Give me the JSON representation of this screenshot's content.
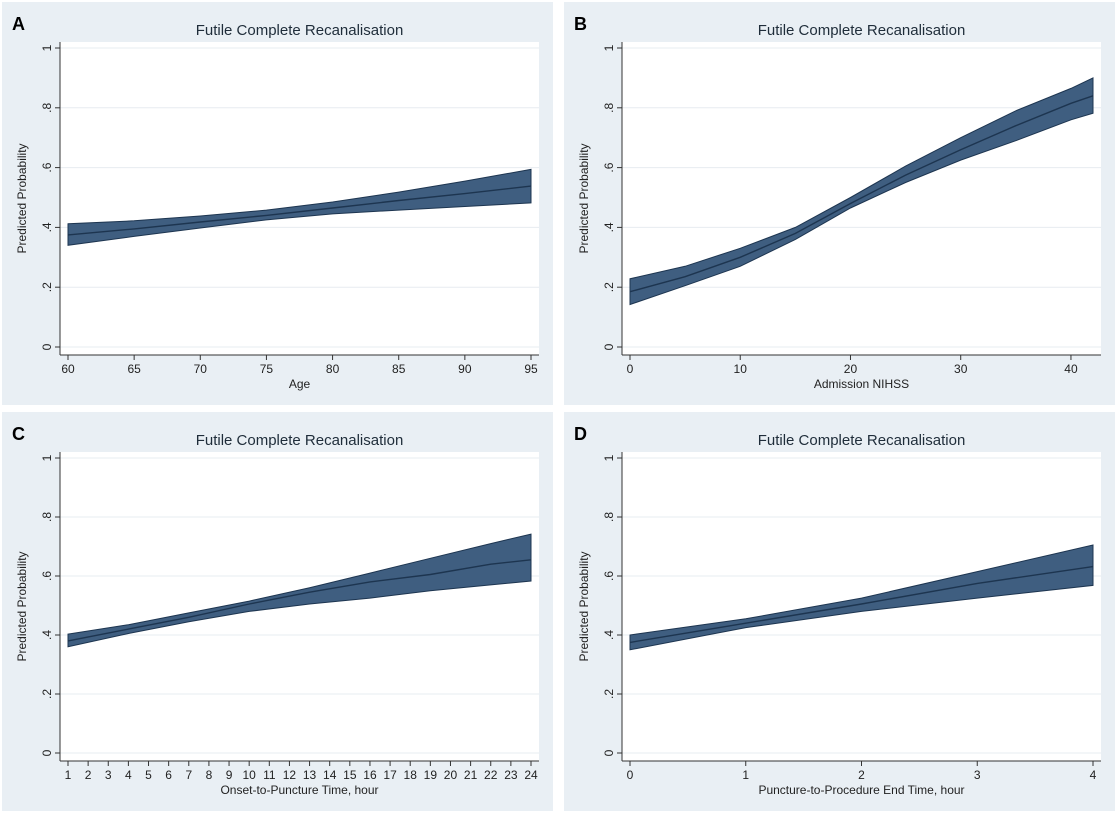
{
  "colors": {
    "panel_bg": "#e9eff4",
    "plot_bg": "#ffffff",
    "grid": "#e7ecf0",
    "band": "#3f5e80",
    "line": "#1d3550",
    "axis": "#333333"
  },
  "chart_data": [
    {
      "panel": "A",
      "type": "area",
      "title": "Futile Complete Recanalisation",
      "xlabel": "Age",
      "ylabel": "Predicted Probability",
      "xlim": [
        60,
        95
      ],
      "ylim": [
        0,
        1
      ],
      "xticks": [
        "60",
        "65",
        "70",
        "75",
        "80",
        "85",
        "90",
        "95"
      ],
      "yticks": [
        "0",
        ".2",
        ".4",
        ".6",
        ".8",
        "1"
      ],
      "grid": true,
      "x": [
        60,
        65,
        70,
        75,
        80,
        85,
        90,
        95
      ],
      "y": [
        0.375,
        0.395,
        0.418,
        0.44,
        0.465,
        0.49,
        0.513,
        0.538
      ],
      "lower": [
        0.34,
        0.37,
        0.398,
        0.425,
        0.445,
        0.458,
        0.47,
        0.482
      ],
      "upper": [
        0.412,
        0.422,
        0.438,
        0.458,
        0.485,
        0.518,
        0.555,
        0.594
      ]
    },
    {
      "panel": "B",
      "type": "area",
      "title": "Futile Complete Recanalisation",
      "xlabel": "Admission NIHSS",
      "ylabel": "Predicted Probability",
      "xlim": [
        0,
        42
      ],
      "ylim": [
        0,
        1
      ],
      "xticks": [
        "0",
        "10",
        "20",
        "30",
        "40"
      ],
      "yticks": [
        "0",
        ".2",
        ".4",
        ".6",
        ".8",
        "1"
      ],
      "grid": true,
      "x": [
        0,
        5,
        10,
        15,
        20,
        25,
        30,
        35,
        40,
        42
      ],
      "y": [
        0.185,
        0.235,
        0.3,
        0.38,
        0.48,
        0.575,
        0.66,
        0.74,
        0.815,
        0.84
      ],
      "lower": [
        0.142,
        0.205,
        0.27,
        0.36,
        0.465,
        0.55,
        0.625,
        0.69,
        0.76,
        0.782
      ],
      "upper": [
        0.228,
        0.27,
        0.33,
        0.4,
        0.5,
        0.605,
        0.7,
        0.79,
        0.865,
        0.9
      ]
    },
    {
      "panel": "C",
      "type": "area",
      "title": "Futile Complete Recanalisation",
      "xlabel": "Onset-to-Puncture Time, hour",
      "ylabel": "Predicted Probability",
      "xlim": [
        1,
        24
      ],
      "ylim": [
        0,
        1
      ],
      "xticks": [
        "1",
        "2",
        "3",
        "4",
        "5",
        "6",
        "7",
        "8",
        "9",
        "10",
        "11",
        "12",
        "13",
        "14",
        "15",
        "16",
        "17",
        "18",
        "19",
        "20",
        "21",
        "22",
        "23",
        "24"
      ],
      "yticks": [
        "0",
        ".2",
        ".4",
        ".6",
        ".8",
        "1"
      ],
      "grid": true,
      "x": [
        1,
        4,
        7,
        10,
        13,
        16,
        19,
        22,
        24
      ],
      "y": [
        0.38,
        0.42,
        0.46,
        0.505,
        0.545,
        0.58,
        0.605,
        0.64,
        0.655
      ],
      "lower": [
        0.36,
        0.405,
        0.445,
        0.48,
        0.505,
        0.525,
        0.55,
        0.57,
        0.583
      ],
      "upper": [
        0.403,
        0.435,
        0.475,
        0.515,
        0.56,
        0.61,
        0.66,
        0.71,
        0.742
      ]
    },
    {
      "panel": "D",
      "type": "area",
      "title": "Futile Complete Recanalisation",
      "xlabel": "Puncture-to-Procedure End Time, hour",
      "ylabel": "Predicted Probability",
      "xlim": [
        0,
        4
      ],
      "ylim": [
        0,
        1
      ],
      "xticks": [
        "0",
        "1",
        "2",
        "3",
        "4"
      ],
      "yticks": [
        "0",
        ".2",
        ".4",
        ".6",
        ".8",
        "1"
      ],
      "grid": true,
      "x": [
        0,
        1,
        2,
        3,
        4
      ],
      "y": [
        0.375,
        0.44,
        0.505,
        0.575,
        0.632
      ],
      "lower": [
        0.35,
        0.425,
        0.48,
        0.525,
        0.568
      ],
      "upper": [
        0.4,
        0.455,
        0.525,
        0.615,
        0.705
      ]
    }
  ]
}
